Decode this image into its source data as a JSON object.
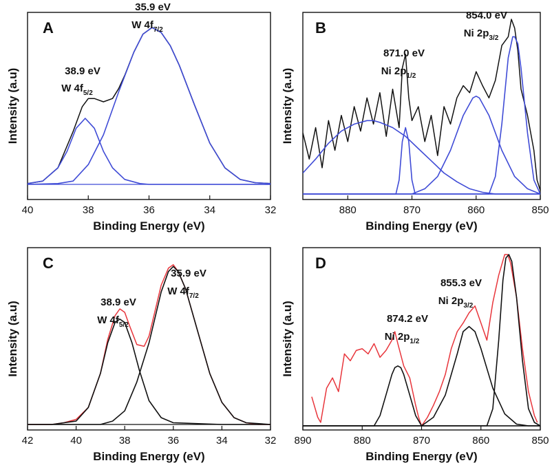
{
  "chart_data": [
    {
      "panel": "A",
      "type": "line",
      "xlabel": "Binding Energy (eV)",
      "ylabel": "Intensity (a.u)",
      "xlim": [
        40,
        32
      ],
      "x_ticks": [
        40,
        38,
        36,
        34,
        32
      ],
      "x_reversed": true,
      "y_ticks_shown": false,
      "series": [
        {
          "kind": "envelope",
          "color": "#111111",
          "x": [
            40,
            39.5,
            39,
            38.5,
            38.2,
            38,
            37.8,
            37.5,
            37.2,
            37,
            36.8,
            36.5,
            36.2,
            35.9,
            35.6,
            35.3,
            35,
            34.5,
            34,
            33.5,
            33,
            32.5,
            32
          ],
          "y": [
            0.005,
            0.02,
            0.1,
            0.32,
            0.47,
            0.52,
            0.52,
            0.5,
            0.52,
            0.58,
            0.66,
            0.8,
            0.91,
            0.95,
            0.92,
            0.84,
            0.72,
            0.48,
            0.25,
            0.1,
            0.03,
            0.01,
            0.005
          ]
        },
        {
          "kind": "fit",
          "color": "#3f4bd6",
          "x": [
            40,
            39.5,
            39,
            38.7,
            38.4,
            38.1,
            37.8,
            37.5,
            37.2,
            36.8,
            36.3,
            36,
            34,
            32
          ],
          "y": [
            0.005,
            0.02,
            0.1,
            0.2,
            0.34,
            0.4,
            0.34,
            0.2,
            0.1,
            0.03,
            0.005,
            0.0,
            0.0,
            0.0
          ]
        },
        {
          "kind": "fit",
          "color": "#3f4bd6",
          "x": [
            40,
            39,
            38.5,
            38,
            37.5,
            37,
            36.5,
            36.2,
            35.9,
            35.6,
            35.3,
            35,
            34.5,
            34,
            33.5,
            33,
            32.5,
            32
          ],
          "y": [
            0.0,
            0.005,
            0.02,
            0.12,
            0.3,
            0.56,
            0.8,
            0.91,
            0.95,
            0.92,
            0.84,
            0.72,
            0.48,
            0.25,
            0.1,
            0.03,
            0.01,
            0.005
          ]
        }
      ],
      "annotations": [
        {
          "energy": "38.9 eV",
          "label": "W 4f",
          "sub": "5/2"
        },
        {
          "energy": "35.9 eV",
          "label": "W 4f",
          "sub": "7/2"
        }
      ]
    },
    {
      "panel": "B",
      "type": "line",
      "xlabel": "Binding Energy (eV)",
      "ylabel": "Intensity (a.u)",
      "xlim": [
        887,
        850
      ],
      "x_ticks": [
        880,
        870,
        860,
        850
      ],
      "x_reversed": true,
      "y_ticks_shown": false,
      "series": [
        {
          "kind": "spectrum",
          "color": "#111111",
          "x": [
            887,
            886,
            885,
            884,
            883,
            882,
            881,
            880,
            879,
            878,
            877,
            876,
            875,
            874,
            873,
            872,
            871.5,
            871,
            870.5,
            870,
            869,
            868,
            867,
            866,
            865,
            864,
            863,
            862,
            861,
            860,
            859,
            858,
            857,
            856,
            855,
            854.5,
            854,
            853.5,
            853,
            852,
            851,
            850.5,
            850
          ],
          "y": [
            0.35,
            0.2,
            0.38,
            0.15,
            0.42,
            0.25,
            0.45,
            0.3,
            0.5,
            0.36,
            0.55,
            0.4,
            0.58,
            0.33,
            0.6,
            0.38,
            0.72,
            0.8,
            0.55,
            0.42,
            0.5,
            0.3,
            0.45,
            0.22,
            0.5,
            0.4,
            0.55,
            0.62,
            0.58,
            0.7,
            0.62,
            0.55,
            0.65,
            0.85,
            0.9,
            1.0,
            0.95,
            0.82,
            0.6,
            0.45,
            0.25,
            0.08,
            0.02
          ]
        },
        {
          "kind": "fit",
          "color": "#3f4bd6",
          "x": [
            887,
            885,
            883,
            881,
            879,
            877,
            876,
            875,
            873,
            871,
            869,
            867,
            865,
            863,
            861,
            859,
            857,
            855,
            853,
            851,
            850
          ],
          "y": [
            0.12,
            0.2,
            0.29,
            0.36,
            0.4,
            0.42,
            0.42,
            0.41,
            0.38,
            0.33,
            0.26,
            0.19,
            0.12,
            0.07,
            0.03,
            0.01,
            0.0,
            0.0,
            0.0,
            0.0,
            0.0
          ]
        },
        {
          "kind": "fit",
          "color": "#3f4bd6",
          "x": [
            887,
            872.5,
            872,
            871.5,
            871,
            870.5,
            870,
            869.5,
            850
          ],
          "y": [
            0.0,
            0.0,
            0.08,
            0.3,
            0.38,
            0.3,
            0.08,
            0.0,
            0.0
          ]
        },
        {
          "kind": "fit",
          "color": "#3f4bd6",
          "x": [
            887,
            870,
            868,
            866,
            864,
            862,
            860.5,
            860,
            859.5,
            858,
            856,
            854,
            852,
            850
          ],
          "y": [
            0.0,
            0.0,
            0.03,
            0.1,
            0.25,
            0.45,
            0.55,
            0.56,
            0.55,
            0.45,
            0.25,
            0.1,
            0.03,
            0.0
          ]
        },
        {
          "kind": "fit",
          "color": "#3f4bd6",
          "x": [
            887,
            858,
            857,
            856,
            855,
            854.3,
            854,
            853.5,
            853,
            852,
            851,
            850
          ],
          "y": [
            0.0,
            0.0,
            0.1,
            0.4,
            0.78,
            0.9,
            0.9,
            0.86,
            0.72,
            0.35,
            0.08,
            0.0
          ]
        }
      ],
      "annotations": [
        {
          "energy": "871.0 eV",
          "label": "Ni 2p",
          "sub": "1/2"
        },
        {
          "energy": "854.0 eV",
          "label": "Ni 2p",
          "sub": "3/2"
        }
      ]
    },
    {
      "panel": "C",
      "type": "line",
      "xlabel": "Binding Energy (eV)",
      "ylabel": "Intensity (a.u)",
      "xlim": [
        42,
        32
      ],
      "x_ticks": [
        42,
        40,
        38,
        36,
        34,
        32
      ],
      "x_reversed": true,
      "y_ticks_shown": false,
      "series": [
        {
          "kind": "envelope",
          "color": "#e8353b",
          "x": [
            42,
            41,
            40.5,
            40,
            39.5,
            39,
            38.7,
            38.4,
            38.2,
            38,
            37.8,
            37.5,
            37.2,
            37,
            36.8,
            36.5,
            36.2,
            36,
            35.8,
            35.5,
            35,
            34.5,
            34,
            33.5,
            33,
            32.5,
            32
          ],
          "y": [
            0.0,
            0.0,
            0.01,
            0.03,
            0.1,
            0.3,
            0.5,
            0.64,
            0.68,
            0.66,
            0.58,
            0.47,
            0.46,
            0.52,
            0.64,
            0.82,
            0.92,
            0.94,
            0.9,
            0.8,
            0.55,
            0.3,
            0.13,
            0.04,
            0.01,
            0.0,
            0.0
          ]
        },
        {
          "kind": "fit",
          "color": "#111111",
          "x": [
            42,
            41,
            40,
            39.5,
            39,
            38.7,
            38.4,
            38.2,
            38,
            37.7,
            37.4,
            37,
            36.5,
            36,
            34,
            32
          ],
          "y": [
            0.0,
            0.0,
            0.02,
            0.1,
            0.3,
            0.48,
            0.6,
            0.62,
            0.6,
            0.48,
            0.32,
            0.14,
            0.04,
            0.01,
            0.0,
            0.0
          ]
        },
        {
          "kind": "fit",
          "color": "#111111",
          "x": [
            42,
            39,
            38.5,
            38,
            37.5,
            37,
            36.5,
            36.2,
            36,
            35.8,
            35.5,
            35,
            34.5,
            34,
            33.5,
            33,
            32
          ],
          "y": [
            0.0,
            0.0,
            0.02,
            0.08,
            0.25,
            0.48,
            0.78,
            0.9,
            0.93,
            0.9,
            0.8,
            0.55,
            0.3,
            0.13,
            0.04,
            0.01,
            0.0
          ]
        }
      ],
      "annotations": [
        {
          "energy": "38.9 eV",
          "label": "W 4f",
          "sub": "5/2"
        },
        {
          "energy": "35.9 eV",
          "label": "W 4f",
          "sub": "7/2"
        }
      ]
    },
    {
      "panel": "D",
      "type": "line",
      "xlabel": "Binding Energy (eV)",
      "ylabel": "Intensity (a.u)",
      "xlim": [
        890,
        850
      ],
      "x_ticks": [
        890,
        880,
        870,
        860,
        850
      ],
      "x_reversed": true,
      "y_ticks_shown": false,
      "series": [
        {
          "kind": "spectrum",
          "color": "#e8353b",
          "x": [
            888.5,
            887.5,
            887,
            886,
            885,
            884,
            883,
            882,
            881,
            880,
            879,
            878,
            877,
            876,
            875,
            874.5,
            874,
            873,
            872,
            871,
            870.5,
            870,
            869,
            868,
            867,
            866,
            865,
            864,
            863,
            862,
            861,
            860,
            859,
            858,
            857,
            856,
            855.5,
            855,
            854,
            853,
            852,
            851,
            850.5
          ],
          "y": [
            0.17,
            0.05,
            0.02,
            0.22,
            0.28,
            0.2,
            0.42,
            0.38,
            0.44,
            0.45,
            0.42,
            0.48,
            0.4,
            0.44,
            0.5,
            0.55,
            0.48,
            0.35,
            0.28,
            0.12,
            0.05,
            0.0,
            0.05,
            0.12,
            0.2,
            0.3,
            0.45,
            0.55,
            0.6,
            0.66,
            0.7,
            0.6,
            0.5,
            0.72,
            0.88,
            1.0,
            1.0,
            0.95,
            0.75,
            0.45,
            0.2,
            0.06,
            0.02
          ]
        },
        {
          "kind": "fit",
          "color": "#111111",
          "x": [
            890,
            878,
            877,
            876,
            875,
            874.5,
            874,
            873.5,
            873,
            872,
            871,
            870,
            850
          ],
          "y": [
            0.0,
            0.0,
            0.06,
            0.18,
            0.3,
            0.34,
            0.35,
            0.34,
            0.3,
            0.18,
            0.06,
            0.0,
            0.0
          ]
        },
        {
          "kind": "fit",
          "color": "#111111",
          "x": [
            890,
            870,
            868,
            866,
            864,
            863,
            862,
            861,
            860,
            858,
            856,
            854,
            852,
            850
          ],
          "y": [
            0.0,
            0.0,
            0.05,
            0.18,
            0.42,
            0.55,
            0.58,
            0.55,
            0.45,
            0.22,
            0.07,
            0.01,
            0.0,
            0.0
          ]
        },
        {
          "kind": "fit",
          "color": "#111111",
          "x": [
            890,
            859,
            858,
            857,
            856.3,
            855.8,
            855.3,
            854.8,
            854,
            853,
            852,
            851,
            850
          ],
          "y": [
            0.0,
            0.0,
            0.1,
            0.5,
            0.85,
            0.98,
            1.0,
            0.96,
            0.75,
            0.38,
            0.1,
            0.02,
            0.0
          ]
        }
      ],
      "annotations": [
        {
          "energy": "874.2 eV",
          "label": "Ni 2p",
          "sub": "1/2"
        },
        {
          "energy": "855.3 eV",
          "label": "Ni 2p",
          "sub": "3/2"
        }
      ]
    }
  ]
}
